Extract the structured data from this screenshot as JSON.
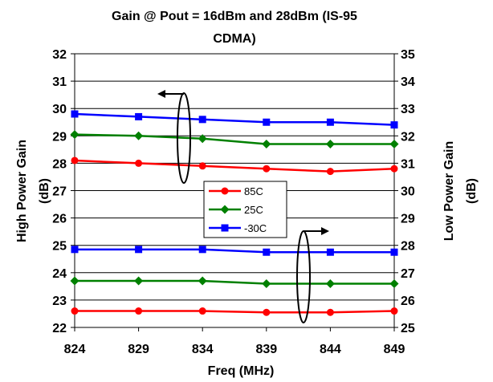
{
  "chart_data": {
    "type": "line",
    "title_lines": [
      "Gain @ Pout = 16dBm and 28dBm (IS-95",
      "CDMA)"
    ],
    "xlabel": "Freq (MHz)",
    "ylabel_left": [
      "High Power Gain",
      "(dB)"
    ],
    "ylabel_right": [
      "Low Power Gain",
      "(dB)"
    ],
    "x": [
      824,
      829,
      834,
      839,
      844,
      849
    ],
    "x_ticks": [
      "824",
      "829",
      "834",
      "839",
      "844",
      "849"
    ],
    "ylim_left": [
      22,
      32
    ],
    "ylim_right": [
      25,
      35
    ],
    "y_ticks_left": [
      "22",
      "23",
      "24",
      "25",
      "26",
      "27",
      "28",
      "29",
      "30",
      "31",
      "32"
    ],
    "y_ticks_right": [
      "25",
      "26",
      "27",
      "28",
      "29",
      "30",
      "31",
      "32",
      "33",
      "34",
      "35"
    ],
    "grid": "horizontal",
    "legend": {
      "placement": "center",
      "entries": [
        "85C",
        "25C",
        "-30C"
      ]
    },
    "series": [
      {
        "name": "85C",
        "axis": "left",
        "color": "#ff0000",
        "marker": "circle",
        "values": [
          28.1,
          28.0,
          27.9,
          27.8,
          27.7,
          27.8
        ]
      },
      {
        "name": "25C",
        "axis": "left",
        "color": "#008000",
        "marker": "diamond",
        "values": [
          29.05,
          29.0,
          28.9,
          28.7,
          28.7,
          28.7
        ]
      },
      {
        "name": "-30C",
        "axis": "left",
        "color": "#0000ff",
        "marker": "square",
        "values": [
          29.8,
          29.7,
          29.6,
          29.5,
          29.5,
          29.4
        ]
      },
      {
        "name": "85C",
        "axis": "right",
        "color": "#ff0000",
        "marker": "circle",
        "values": [
          25.6,
          25.6,
          25.6,
          25.55,
          25.55,
          25.6
        ]
      },
      {
        "name": "25C",
        "axis": "right",
        "color": "#008000",
        "marker": "diamond",
        "values": [
          26.7,
          26.7,
          26.7,
          26.6,
          26.6,
          26.6
        ]
      },
      {
        "name": "-30C",
        "axis": "right",
        "color": "#0000ff",
        "marker": "square",
        "values": [
          27.85,
          27.85,
          27.85,
          27.75,
          27.75,
          27.75
        ]
      }
    ]
  }
}
